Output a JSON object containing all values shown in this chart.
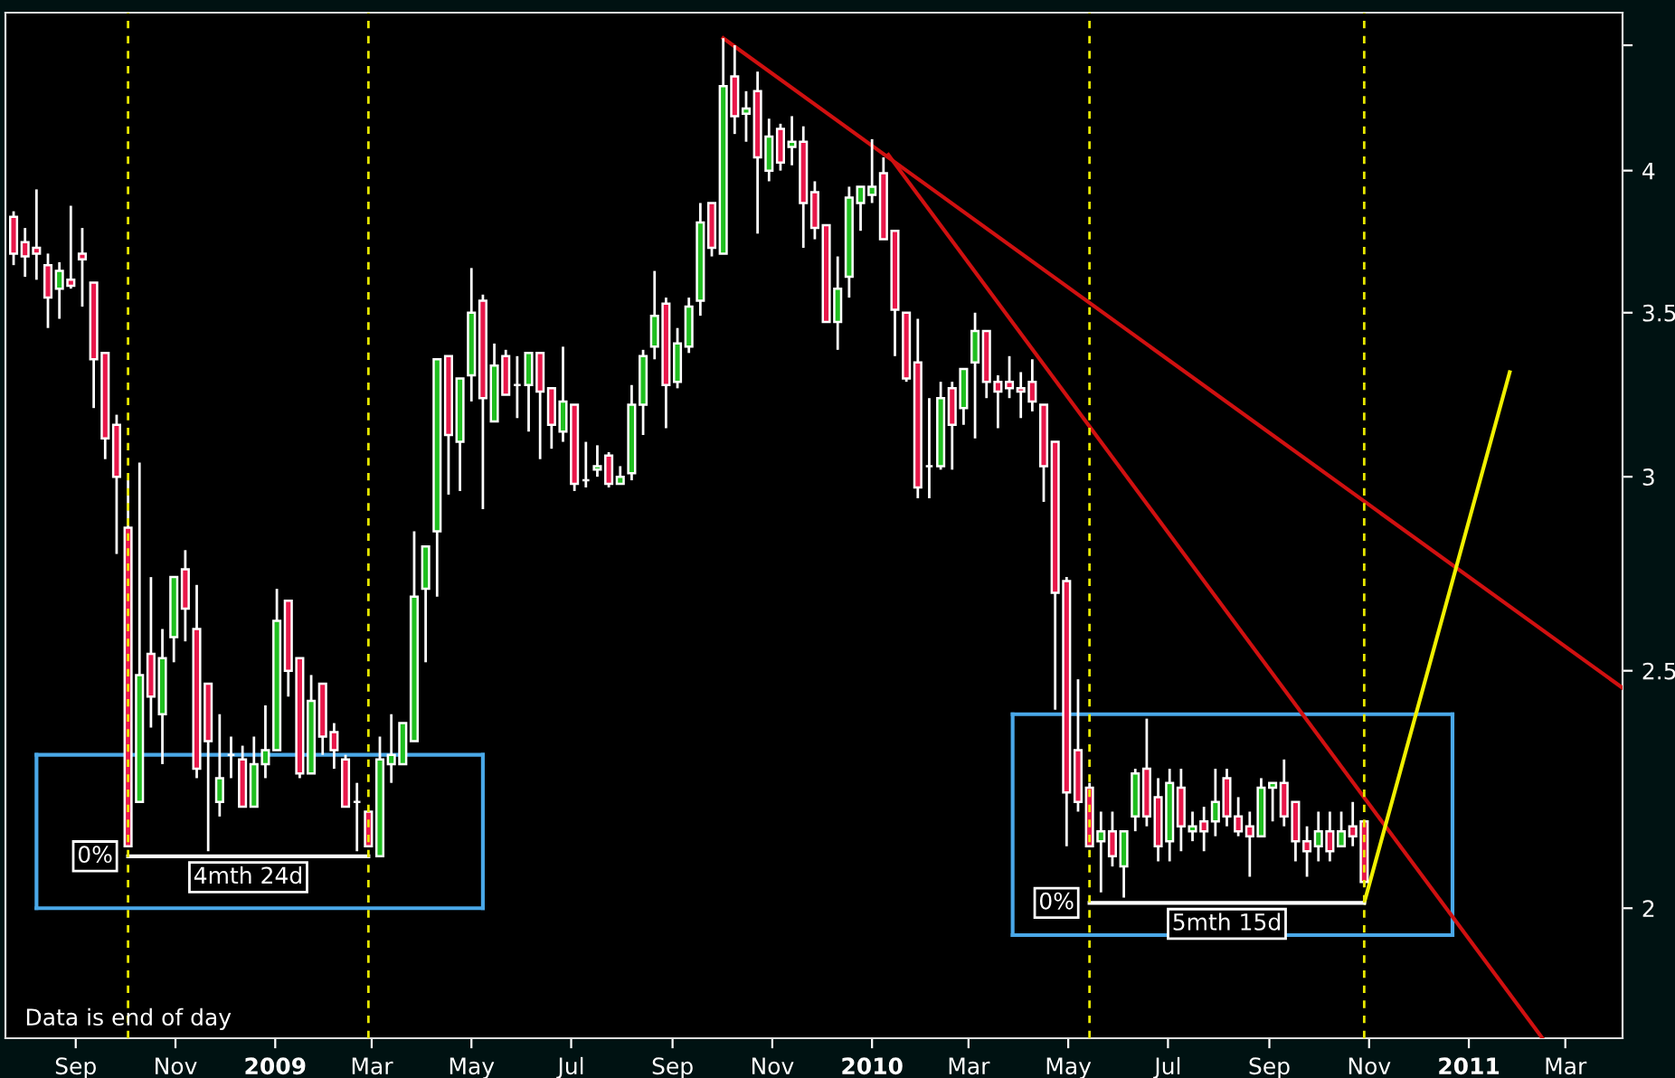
{
  "chart_data": {
    "type": "candlestick",
    "x": [
      "2008-07-25",
      "2008-08-01",
      "2008-08-08",
      "2008-08-15",
      "2008-08-22",
      "2008-08-29",
      "2008-09-05",
      "2008-09-12",
      "2008-09-19",
      "2008-09-26",
      "2008-10-03",
      "2008-10-10",
      "2008-10-17",
      "2008-10-24",
      "2008-10-31",
      "2008-11-07",
      "2008-11-14",
      "2008-11-21",
      "2008-11-28",
      "2008-12-05",
      "2008-12-12",
      "2008-12-19",
      "2008-12-26",
      "2009-01-02",
      "2009-01-09",
      "2009-01-16",
      "2009-01-23",
      "2009-01-30",
      "2009-02-06",
      "2009-02-13",
      "2009-02-20",
      "2009-02-27",
      "2009-03-06",
      "2009-03-13",
      "2009-03-20",
      "2009-03-27",
      "2009-04-03",
      "2009-04-10",
      "2009-04-17",
      "2009-04-24",
      "2009-05-01",
      "2009-05-08",
      "2009-05-15",
      "2009-05-22",
      "2009-05-29",
      "2009-06-05",
      "2009-06-12",
      "2009-06-19",
      "2009-06-26",
      "2009-07-03",
      "2009-07-10",
      "2009-07-17",
      "2009-07-24",
      "2009-07-31",
      "2009-08-07",
      "2009-08-14",
      "2009-08-21",
      "2009-08-28",
      "2009-09-04",
      "2009-09-11",
      "2009-09-18",
      "2009-09-25",
      "2009-10-02",
      "2009-10-09",
      "2009-10-16",
      "2009-10-23",
      "2009-10-30",
      "2009-11-06",
      "2009-11-13",
      "2009-11-20",
      "2009-11-27",
      "2009-12-04",
      "2009-12-11",
      "2009-12-18",
      "2009-12-25",
      "2010-01-01",
      "2010-01-08",
      "2010-01-15",
      "2010-01-22",
      "2010-01-29",
      "2010-02-05",
      "2010-02-12",
      "2010-02-19",
      "2010-02-26",
      "2010-03-05",
      "2010-03-12",
      "2010-03-19",
      "2010-03-26",
      "2010-04-02",
      "2010-04-09",
      "2010-04-16",
      "2010-04-23",
      "2010-04-30",
      "2010-05-07",
      "2010-05-14",
      "2010-05-21",
      "2010-05-28",
      "2010-06-04",
      "2010-06-11",
      "2010-06-18",
      "2010-06-25",
      "2010-07-02",
      "2010-07-09",
      "2010-07-16",
      "2010-07-23",
      "2010-07-30",
      "2010-08-06",
      "2010-08-13",
      "2010-08-20",
      "2010-08-27",
      "2010-09-03",
      "2010-09-10",
      "2010-09-17",
      "2010-09-24",
      "2010-10-01",
      "2010-10-08",
      "2010-10-15",
      "2010-10-22",
      "2010-10-29"
    ],
    "ohlc": [
      [
        3.83,
        3.85,
        3.66,
        3.7
      ],
      [
        3.74,
        3.79,
        3.62,
        3.69
      ],
      [
        3.72,
        3.93,
        3.61,
        3.7
      ],
      [
        3.66,
        3.7,
        3.45,
        3.55
      ],
      [
        3.58,
        3.67,
        3.48,
        3.64
      ],
      [
        3.61,
        3.87,
        3.58,
        3.59
      ],
      [
        3.7,
        3.79,
        3.52,
        3.68
      ],
      [
        3.6,
        3.6,
        3.2,
        3.35
      ],
      [
        3.37,
        3.37,
        3.05,
        3.11
      ],
      [
        3.15,
        3.18,
        2.79,
        3.0
      ],
      [
        2.86,
        2.99,
        2.12,
        2.12
      ],
      [
        2.21,
        3.04,
        2.21,
        2.49
      ],
      [
        2.54,
        2.73,
        2.37,
        2.44
      ],
      [
        2.4,
        2.6,
        2.29,
        2.53
      ],
      [
        2.58,
        2.73,
        2.52,
        2.73
      ],
      [
        2.75,
        2.8,
        2.57,
        2.65
      ],
      [
        2.6,
        2.71,
        2.26,
        2.28
      ],
      [
        2.47,
        2.47,
        2.11,
        2.34
      ],
      [
        2.21,
        2.4,
        2.18,
        2.26
      ],
      [
        2.31,
        2.35,
        2.26,
        2.31
      ],
      [
        2.3,
        2.33,
        2.2,
        2.2
      ],
      [
        2.2,
        2.35,
        2.2,
        2.29
      ],
      [
        2.29,
        2.42,
        2.26,
        2.32
      ],
      [
        2.32,
        2.7,
        2.32,
        2.62
      ],
      [
        2.67,
        2.67,
        2.44,
        2.5
      ],
      [
        2.53,
        2.53,
        2.26,
        2.27
      ],
      [
        2.27,
        2.49,
        2.27,
        2.43
      ],
      [
        2.47,
        2.47,
        2.31,
        2.35
      ],
      [
        2.36,
        2.38,
        2.28,
        2.32
      ],
      [
        2.3,
        2.31,
        2.2,
        2.2
      ],
      [
        2.21,
        2.25,
        2.11,
        2.21
      ],
      [
        2.19,
        2.19,
        2.12,
        2.12
      ],
      [
        2.1,
        2.35,
        2.1,
        2.3
      ],
      [
        2.29,
        2.4,
        2.25,
        2.31
      ],
      [
        2.29,
        2.38,
        2.29,
        2.38
      ],
      [
        2.34,
        2.85,
        2.34,
        2.68
      ],
      [
        2.7,
        2.81,
        2.52,
        2.81
      ],
      [
        2.85,
        3.35,
        2.68,
        3.35
      ],
      [
        3.36,
        3.36,
        2.95,
        3.12
      ],
      [
        3.1,
        3.29,
        2.96,
        3.29
      ],
      [
        3.3,
        3.65,
        3.22,
        3.5
      ],
      [
        3.54,
        3.56,
        2.91,
        3.23
      ],
      [
        3.16,
        3.4,
        3.16,
        3.33
      ],
      [
        3.36,
        3.38,
        3.24,
        3.24
      ],
      [
        3.27,
        3.36,
        3.17,
        3.27
      ],
      [
        3.27,
        3.37,
        3.13,
        3.37
      ],
      [
        3.37,
        3.37,
        3.05,
        3.25
      ],
      [
        3.26,
        3.26,
        3.08,
        3.15
      ],
      [
        3.13,
        3.39,
        3.1,
        3.22
      ],
      [
        3.21,
        3.21,
        2.96,
        2.98
      ],
      [
        2.99,
        3.1,
        2.97,
        2.99
      ],
      [
        3.02,
        3.09,
        3.0,
        3.03
      ],
      [
        3.06,
        3.07,
        2.97,
        2.98
      ],
      [
        2.98,
        3.03,
        2.98,
        3.0
      ],
      [
        3.01,
        3.27,
        2.99,
        3.21
      ],
      [
        3.21,
        3.38,
        3.12,
        3.36
      ],
      [
        3.39,
        3.64,
        3.35,
        3.49
      ],
      [
        3.53,
        3.55,
        3.14,
        3.27
      ],
      [
        3.28,
        3.45,
        3.26,
        3.4
      ],
      [
        3.39,
        3.55,
        3.37,
        3.52
      ],
      [
        3.54,
        3.88,
        3.49,
        3.81
      ],
      [
        3.88,
        3.88,
        3.69,
        3.72
      ],
      [
        3.7,
        4.53,
        3.7,
        4.33
      ],
      [
        4.37,
        4.5,
        4.14,
        4.21
      ],
      [
        4.22,
        4.31,
        4.11,
        4.24
      ],
      [
        4.31,
        4.39,
        3.77,
        4.05
      ],
      [
        4.0,
        4.2,
        3.96,
        4.13
      ],
      [
        4.16,
        4.18,
        4.0,
        4.03
      ],
      [
        4.09,
        4.21,
        4.02,
        4.11
      ],
      [
        4.11,
        4.17,
        3.72,
        3.88
      ],
      [
        3.92,
        3.96,
        3.75,
        3.79
      ],
      [
        3.8,
        3.8,
        3.47,
        3.47
      ],
      [
        3.47,
        3.69,
        3.38,
        3.58
      ],
      [
        3.62,
        3.94,
        3.55,
        3.9
      ],
      [
        3.88,
        3.94,
        3.78,
        3.94
      ],
      [
        3.91,
        4.12,
        3.88,
        3.94
      ],
      [
        3.99,
        4.05,
        3.75,
        3.75
      ],
      [
        3.78,
        3.78,
        3.36,
        3.51
      ],
      [
        3.5,
        3.5,
        3.28,
        3.29
      ],
      [
        3.34,
        3.48,
        2.94,
        2.97
      ],
      [
        3.03,
        3.23,
        2.94,
        3.03
      ],
      [
        3.03,
        3.28,
        3.02,
        3.23
      ],
      [
        3.26,
        3.28,
        3.02,
        3.15
      ],
      [
        3.2,
        3.32,
        3.15,
        3.32
      ],
      [
        3.34,
        3.5,
        3.11,
        3.44
      ],
      [
        3.44,
        3.44,
        3.23,
        3.28
      ],
      [
        3.28,
        3.3,
        3.14,
        3.25
      ],
      [
        3.28,
        3.36,
        3.23,
        3.26
      ],
      [
        3.26,
        3.31,
        3.17,
        3.25
      ],
      [
        3.28,
        3.35,
        3.19,
        3.22
      ],
      [
        3.21,
        3.21,
        2.93,
        3.03
      ],
      [
        3.1,
        3.1,
        2.41,
        2.69
      ],
      [
        2.72,
        2.73,
        2.12,
        2.23
      ],
      [
        2.32,
        2.48,
        2.19,
        2.21
      ],
      [
        2.24,
        2.25,
        2.12,
        2.12
      ],
      [
        2.13,
        2.19,
        2.03,
        2.15
      ],
      [
        2.15,
        2.19,
        2.08,
        2.1
      ],
      [
        2.08,
        2.15,
        2.02,
        2.15
      ],
      [
        2.18,
        2.28,
        2.15,
        2.27
      ],
      [
        2.28,
        2.39,
        2.16,
        2.18
      ],
      [
        2.22,
        2.26,
        2.09,
        2.12
      ],
      [
        2.13,
        2.28,
        2.09,
        2.25
      ],
      [
        2.24,
        2.28,
        2.11,
        2.16
      ],
      [
        2.15,
        2.19,
        2.13,
        2.16
      ],
      [
        2.17,
        2.2,
        2.11,
        2.15
      ],
      [
        2.17,
        2.28,
        2.14,
        2.21
      ],
      [
        2.26,
        2.28,
        2.16,
        2.18
      ],
      [
        2.18,
        2.22,
        2.14,
        2.15
      ],
      [
        2.16,
        2.19,
        2.06,
        2.14
      ],
      [
        2.14,
        2.26,
        2.14,
        2.24
      ],
      [
        2.24,
        2.25,
        2.17,
        2.25
      ],
      [
        2.25,
        2.3,
        2.16,
        2.18
      ],
      [
        2.21,
        2.21,
        2.09,
        2.13
      ],
      [
        2.13,
        2.16,
        2.06,
        2.11
      ],
      [
        2.12,
        2.19,
        2.09,
        2.15
      ],
      [
        2.15,
        2.19,
        2.09,
        2.11
      ],
      [
        2.12,
        2.19,
        2.12,
        2.15
      ],
      [
        2.16,
        2.21,
        2.12,
        2.14
      ],
      [
        2.17,
        2.17,
        2.04,
        2.05
      ]
    ],
    "colors": [
      "#e8174a",
      "#e8174a",
      "#e8174a",
      "#e8174a",
      "#1fbf1f",
      "#e8174a",
      "#e8174a",
      "#e8174a",
      "#e8174a",
      "#e8174a",
      "#e8174a",
      "#1fbf1f",
      "#e8174a",
      "#1fbf1f",
      "#1fbf1f",
      "#e8174a",
      "#e8174a",
      "#e8174a",
      "#1fbf1f",
      "#ffffff",
      "#e8174a",
      "#1fbf1f",
      "#1fbf1f",
      "#1fbf1f",
      "#e8174a",
      "#e8174a",
      "#1fbf1f",
      "#e8174a",
      "#e8174a",
      "#e8174a",
      "#ffffff",
      "#e8174a",
      "#1fbf1f",
      "#1fbf1f",
      "#1fbf1f",
      "#1fbf1f",
      "#1fbf1f",
      "#1fbf1f",
      "#e8174a",
      "#1fbf1f",
      "#1fbf1f",
      "#e8174a",
      "#1fbf1f",
      "#e8174a",
      "#ffffff",
      "#1fbf1f",
      "#e8174a",
      "#e8174a",
      "#1fbf1f",
      "#e8174a",
      "#ffffff",
      "#1fbf1f",
      "#e8174a",
      "#1fbf1f",
      "#1fbf1f",
      "#1fbf1f",
      "#1fbf1f",
      "#e8174a",
      "#1fbf1f",
      "#1fbf1f",
      "#1fbf1f",
      "#e8174a",
      "#1fbf1f",
      "#e8174a",
      "#1fbf1f",
      "#e8174a",
      "#1fbf1f",
      "#e8174a",
      "#1fbf1f",
      "#e8174a",
      "#e8174a",
      "#e8174a",
      "#1fbf1f",
      "#1fbf1f",
      "#1fbf1f",
      "#1fbf1f",
      "#e8174a",
      "#e8174a",
      "#e8174a",
      "#e8174a",
      "#ffffff",
      "#1fbf1f",
      "#e8174a",
      "#1fbf1f",
      "#1fbf1f",
      "#e8174a",
      "#e8174a",
      "#e8174a",
      "#e8174a",
      "#e8174a",
      "#e8174a",
      "#e8174a",
      "#e8174a",
      "#e8174a",
      "#e8174a",
      "#1fbf1f",
      "#e8174a",
      "#1fbf1f",
      "#1fbf1f",
      "#e8174a",
      "#e8174a",
      "#1fbf1f",
      "#e8174a",
      "#1fbf1f",
      "#e8174a",
      "#1fbf1f",
      "#e8174a",
      "#e8174a",
      "#e8174a",
      "#1fbf1f",
      "#1fbf1f",
      "#e8174a",
      "#e8174a",
      "#e8174a",
      "#1fbf1f",
      "#e8174a",
      "#1fbf1f",
      "#e8174a",
      "#e8174a"
    ],
    "series": [
      {
        "type": "line",
        "color": "#4aa8e8",
        "x": [
          "2008-08-08",
          "2009-05-08"
        ],
        "values": [
          2.31,
          2.31
        ]
      },
      {
        "type": "line",
        "color": "#4aa8e8",
        "x": [
          "2008-08-08",
          "2009-05-08"
        ],
        "values": [
          2.0,
          2.0
        ]
      },
      {
        "type": "line",
        "color": "#4aa8e8",
        "x": [
          "2008-08-08",
          "2008-08-08"
        ],
        "values": [
          2.0,
          2.31
        ]
      },
      {
        "type": "line",
        "color": "#4aa8e8",
        "x": [
          "2009-05-08",
          "2009-05-08"
        ],
        "values": [
          2.0,
          2.31
        ]
      },
      {
        "type": "line",
        "color": "#4aa8e8",
        "x": [
          "2010-03-28",
          "2010-12-22"
        ],
        "values": [
          2.4,
          2.4
        ]
      },
      {
        "type": "line",
        "color": "#4aa8e8",
        "x": [
          "2010-03-28",
          "2010-12-22"
        ],
        "values": [
          1.95,
          1.95
        ]
      },
      {
        "type": "line",
        "color": "#4aa8e8",
        "x": [
          "2010-03-28",
          "2010-03-28"
        ],
        "values": [
          1.95,
          2.4
        ]
      },
      {
        "type": "line",
        "color": "#4aa8e8",
        "x": [
          "2010-12-22",
          "2010-12-22"
        ],
        "values": [
          1.95,
          2.4
        ]
      },
      {
        "type": "line",
        "color": "#d01010",
        "x": [
          "2009-10-02",
          "2011-04-05"
        ],
        "values": [
          4.53,
          2.46
        ]
      },
      {
        "type": "line",
        "color": "#d01010",
        "x": [
          "2010-01-11",
          "2011-02-15"
        ],
        "values": [
          4.06,
          1.77
        ]
      },
      {
        "type": "line",
        "color": "#f0f000",
        "x": [
          "2010-10-29",
          "2011-01-26"
        ],
        "values": [
          2.01,
          3.31
        ]
      },
      {
        "type": "line",
        "color": "#ffffff",
        "x": [
          "2008-10-03",
          "2009-02-27"
        ],
        "values": [
          2.1,
          2.1
        ]
      },
      {
        "type": "line",
        "color": "#ffffff",
        "x": [
          "2010-05-14",
          "2010-10-29"
        ],
        "values": [
          2.01,
          2.01
        ]
      }
    ],
    "ref_lines": [
      {
        "axis": "x",
        "value": "2008-10-03",
        "color": "#e8e800",
        "line_style": "dashed"
      },
      {
        "axis": "x",
        "value": "2009-02-27",
        "color": "#e8e800",
        "line_style": "dashed"
      },
      {
        "axis": "x",
        "value": "2010-05-14",
        "color": "#e8e800",
        "line_style": "dashed"
      },
      {
        "axis": "x",
        "value": "2010-10-29",
        "color": "#e8e800",
        "line_style": "dashed"
      }
    ],
    "annotations": [
      {
        "text": "0%",
        "x": "2008-10-03",
        "y": 2.1
      },
      "4mth 24d",
      {
        "text": "0%",
        "x": "2010-05-14",
        "y": 2.01
      },
      "5mth 15d",
      "Data is end of day"
    ],
    "log": "y",
    "xlim": [
      "2008-07-20",
      "2011-04-05"
    ],
    "ylim": [
      1.77,
      4.64
    ],
    "xticks": [
      {
        "value": "2008-09-01",
        "label": "Sep"
      },
      {
        "value": "2008-11-01",
        "label": "Nov"
      },
      {
        "value": "2009-01-01",
        "label": "2009"
      },
      {
        "value": "2009-03-01",
        "label": "Mar"
      },
      {
        "value": "2009-05-01",
        "label": "May"
      },
      {
        "value": "2009-07-01",
        "label": "Jul"
      },
      {
        "value": "2009-09-01",
        "label": "Sep"
      },
      {
        "value": "2009-11-01",
        "label": "Nov"
      },
      {
        "value": "2010-01-01",
        "label": "2010"
      },
      {
        "value": "2010-03-01",
        "label": "Mar"
      },
      {
        "value": "2010-05-01",
        "label": "May"
      },
      {
        "value": "2010-07-01",
        "label": "Jul"
      },
      {
        "value": "2010-09-01",
        "label": "Sep"
      },
      {
        "value": "2010-11-01",
        "label": "Nov"
      },
      {
        "value": "2011-01-01",
        "label": "2011"
      },
      {
        "value": "2011-03-01",
        "label": "Mar"
      }
    ],
    "yticks": [
      2,
      2.5,
      3,
      3.5,
      4,
      {
        "value": 4.5,
        "label": null
      }
    ]
  }
}
